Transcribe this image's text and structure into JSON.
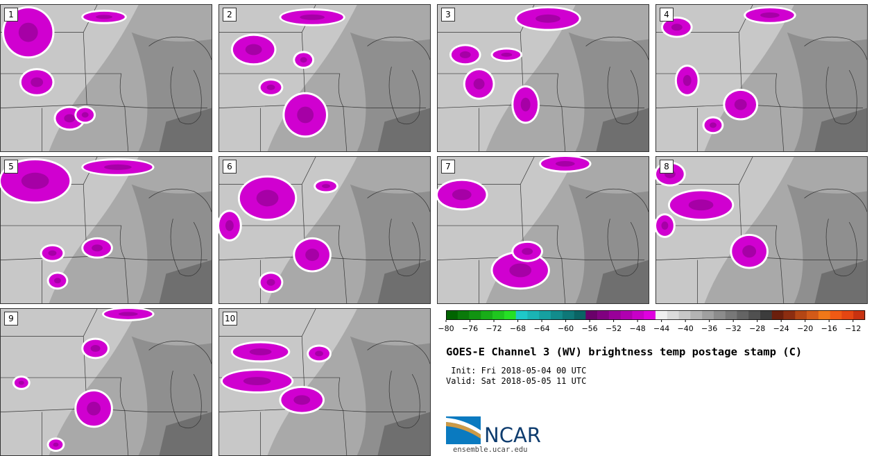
{
  "panels": [
    {
      "label": "1"
    },
    {
      "label": "2"
    },
    {
      "label": "3"
    },
    {
      "label": "4"
    },
    {
      "label": "5"
    },
    {
      "label": "6"
    },
    {
      "label": "7"
    },
    {
      "label": "8"
    },
    {
      "label": "9"
    },
    {
      "label": "10"
    }
  ],
  "colorbar": {
    "ticks": [
      "−80",
      "−76",
      "−72",
      "−68",
      "−64",
      "−60",
      "−56",
      "−52",
      "−48",
      "−44",
      "−40",
      "−36",
      "−32",
      "−28",
      "−24",
      "−20",
      "−16",
      "−12"
    ],
    "range": [
      -80,
      -10
    ],
    "colors": [
      "#006400",
      "#0a7a0a",
      "#119311",
      "#18ad18",
      "#1fc61f",
      "#25e025",
      "#1ec8c8",
      "#1ab4b4",
      "#16a0a0",
      "#128c8c",
      "#0e7878",
      "#0a6464",
      "#6a006a",
      "#800080",
      "#990099",
      "#b000b0",
      "#c800c8",
      "#e000e0",
      "#f0f0f0",
      "#dcdcdc",
      "#c8c8c8",
      "#b4b4b4",
      "#a0a0a0",
      "#8c8c8c",
      "#787878",
      "#646464",
      "#505050",
      "#3c3c3c",
      "#6b1f0c",
      "#8c2d10",
      "#b44614",
      "#d25a18",
      "#f07818",
      "#f05a14",
      "#e44612",
      "#c83210"
    ]
  },
  "title": "GOES-E Channel 3 (WV) brightness temp postage stamp (C)",
  "init": " Init: Fri 2018-05-04 00 UTC",
  "valid": "Valid: Sat 2018-05-05 11 UTC",
  "logo": {
    "name": "NCAR",
    "url": "ensemble.ucar.edu"
  },
  "colors": {
    "magenta": "#d000d0",
    "dark_magenta": "#8a008a",
    "light_gray": "#c8c8c8",
    "mid_gray": "#a9a9a9",
    "dark_gray": "#7a7a7a"
  }
}
